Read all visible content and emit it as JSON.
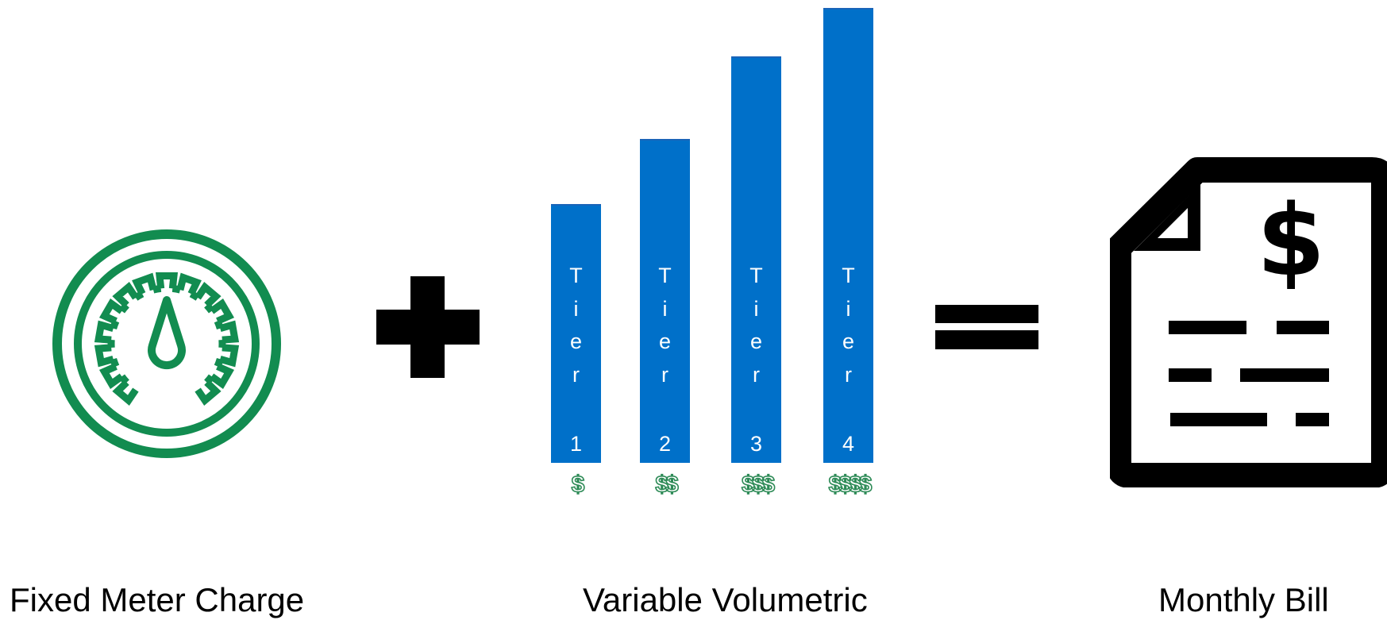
{
  "fixed": {
    "caption": "Fixed Meter Charge",
    "icon": "gauge-icon",
    "color": "#128c50"
  },
  "operators": {
    "plus": "plus-icon",
    "equals": "equals-icon"
  },
  "variable": {
    "caption": "Variable Volumetric",
    "bar_color": "#0070c9",
    "price_color": "#2e8b57",
    "tiers": [
      {
        "letters": [
          "T",
          "i",
          "e",
          "r"
        ],
        "number": "1",
        "price": "$",
        "level": 1
      },
      {
        "letters": [
          "T",
          "i",
          "e",
          "r"
        ],
        "number": "2",
        "price": "$$",
        "level": 2
      },
      {
        "letters": [
          "T",
          "i",
          "e",
          "r"
        ],
        "number": "3",
        "price": "$$$",
        "level": 3
      },
      {
        "letters": [
          "T",
          "i",
          "e",
          "r"
        ],
        "number": "4",
        "price": "$$$$",
        "level": 4
      }
    ]
  },
  "bill": {
    "caption": "Monthly Bill",
    "icon": "bill-document-icon",
    "symbol": "$"
  }
}
